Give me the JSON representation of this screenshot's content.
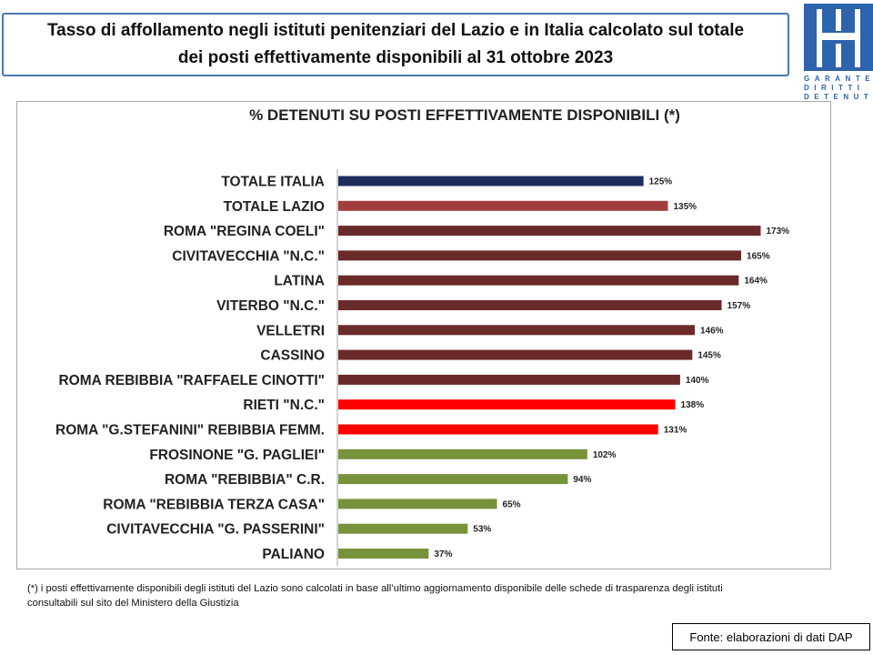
{
  "header": {
    "title_line1": "Tasso di affollamento negli istituti penitenziari del Lazio e in Italia calcolato sul totale",
    "title_line2": "dei posti effettivamente disponibili al 31 ottobre 2023"
  },
  "logo": {
    "icon": "garante-logo-icon",
    "line1": "GARANTE",
    "line2": "DIRITTI",
    "line3": "DETENUTI",
    "color": "#2e63ad"
  },
  "chart_data": {
    "type": "bar",
    "orientation": "horizontal",
    "title": "% DETENUTI SU POSTI EFFETTIVAMENTE DISPONIBILI (*)",
    "categories": [
      "TOTALE ITALIA",
      "TOTALE LAZIO",
      "ROMA \"REGINA COELI\"",
      "CIVITAVECCHIA \"N.C.\"",
      "LATINA",
      "VITERBO \"N.C.\"",
      "VELLETRI",
      "CASSINO",
      "ROMA REBIBBIA \"RAFFAELE CINOTTI\"",
      "RIETI \"N.C.\"",
      "ROMA \"G.STEFANINI\" REBIBBIA FEMM.",
      "FROSINONE \"G. PAGLIEI\"",
      "ROMA \"REBIBBIA\" C.R.",
      "ROMA \"REBIBBIA TERZA CASA\"",
      "CIVITAVECCHIA \"G. PASSERINI\"",
      "PALIANO"
    ],
    "values": [
      125,
      135,
      173,
      165,
      164,
      157,
      146,
      145,
      140,
      138,
      131,
      102,
      94,
      65,
      53,
      37
    ],
    "value_labels": [
      "125%",
      "135%",
      "173%",
      "165%",
      "164%",
      "157%",
      "146%",
      "145%",
      "140%",
      "138%",
      "131%",
      "102%",
      "94%",
      "65%",
      "53%",
      "37%"
    ],
    "colors": [
      "#1f2d5c",
      "#a33c3c",
      "#6b2a2a",
      "#6b2a2a",
      "#6b2a2a",
      "#6b2a2a",
      "#6b2a2a",
      "#6b2a2a",
      "#6b2a2a",
      "#ff0000",
      "#ff0000",
      "#76933c",
      "#76933c",
      "#76933c",
      "#76933c",
      "#76933c"
    ],
    "xlim": [
      0,
      175
    ],
    "grid": false
  },
  "footnote": {
    "line1": "(*) i posti effettivamente disponibili  degli istituti del Lazio sono  calcolati in base all’ultimo aggiornamento disponibile  delle schede  di trasparenza degli istituti",
    "line2": "consultabili  sul sito del Ministero della Giustizia"
  },
  "source": {
    "text": "Fonte: elaborazioni di dati DAP"
  }
}
